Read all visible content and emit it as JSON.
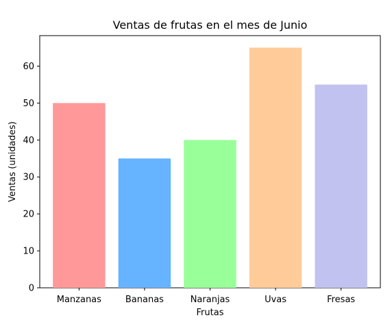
{
  "chart_data": {
    "type": "bar",
    "title": "Ventas de frutas en el mes de Junio",
    "xlabel": "Frutas",
    "ylabel": "Ventas (unidades)",
    "categories": [
      "Manzanas",
      "Bananas",
      "Naranjas",
      "Uvas",
      "Fresas"
    ],
    "values": [
      50,
      35,
      40,
      65,
      55
    ],
    "colors": [
      "#ff9999",
      "#66b3ff",
      "#99ff99",
      "#ffcc99",
      "#c2c2f0"
    ],
    "ylim": [
      0,
      68.25
    ],
    "yticks": [
      0,
      10,
      20,
      30,
      40,
      50,
      60
    ],
    "grid": false,
    "legend": "none"
  }
}
